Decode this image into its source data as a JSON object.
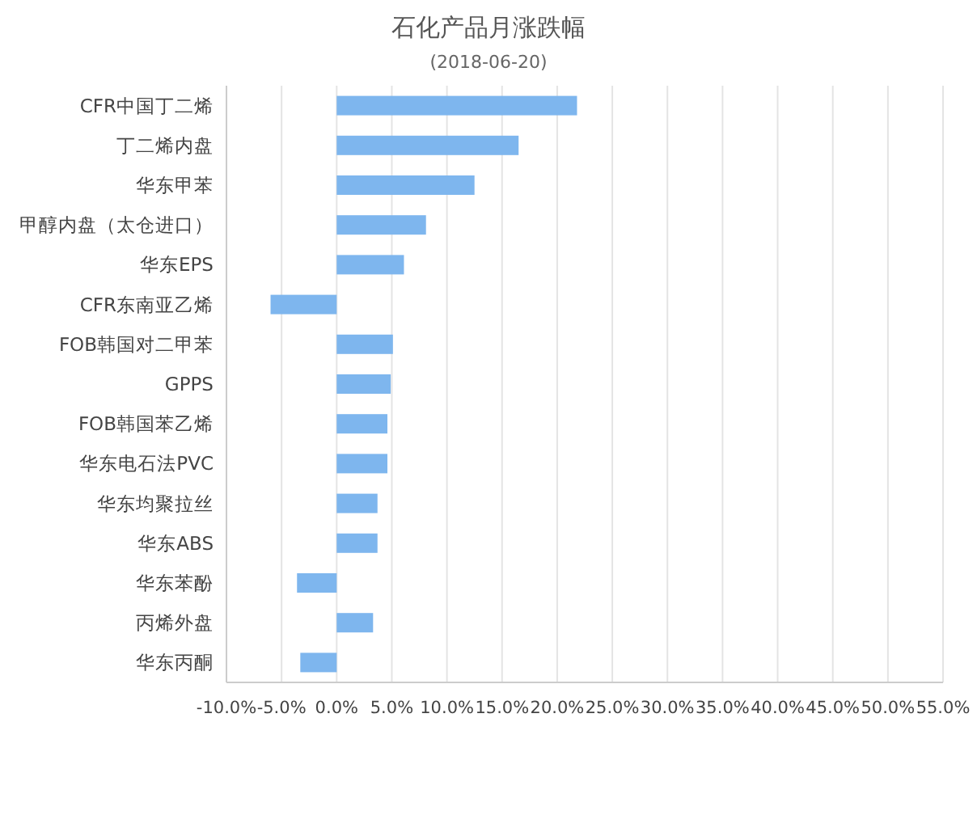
{
  "chart_data": {
    "type": "bar",
    "orientation": "horizontal",
    "title": "石化产品月涨跌幅",
    "subtitle": "(2018-06-20)",
    "categories": [
      "CFR中国丁二烯",
      "丁二烯内盘",
      "华东甲苯",
      "甲醇内盘（太仓进口）",
      "华东EPS",
      "CFR东南亚乙烯",
      "FOB韩国对二甲苯",
      "GPPS",
      "FOB韩国苯乙烯",
      "华东电石法PVC",
      "华东均聚拉丝",
      "华东ABS",
      "华东苯酚",
      "丙烯外盘",
      "华东丙酮"
    ],
    "values": [
      21.8,
      16.5,
      12.5,
      8.1,
      6.1,
      -6.0,
      5.1,
      4.9,
      4.6,
      4.6,
      3.7,
      3.7,
      -3.6,
      3.3,
      -3.3
    ],
    "color": "#7eb6ee",
    "xlim": [
      -10,
      55
    ],
    "xticks": [
      {
        "value": -10,
        "label": "-10.0%"
      },
      {
        "value": -5,
        "label": "-5.0%"
      },
      {
        "value": 0,
        "label": "0.0%"
      },
      {
        "value": 5,
        "label": "5.0%"
      },
      {
        "value": 10,
        "label": "10.0%"
      },
      {
        "value": 15,
        "label": "15.0%"
      },
      {
        "value": 20,
        "label": "20.0%"
      },
      {
        "value": 25,
        "label": "25.0%"
      },
      {
        "value": 30,
        "label": "30.0%"
      },
      {
        "value": 35,
        "label": "35.0%"
      },
      {
        "value": 40,
        "label": "40.0%"
      },
      {
        "value": 45,
        "label": "45.0%"
      },
      {
        "value": 50,
        "label": "50.0%"
      },
      {
        "value": 55,
        "label": "55.0%"
      }
    ],
    "grid": "x"
  }
}
